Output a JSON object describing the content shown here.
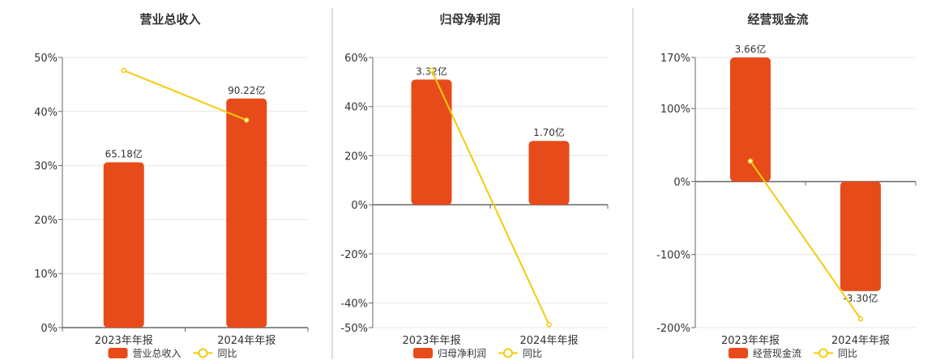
{
  "colors": {
    "bar": "#E84B1A",
    "line": "#F2CC0C",
    "grid": "#E6E6E6",
    "axis": "#666666",
    "divider": "#BBBBBB",
    "text": "#333333"
  },
  "chart_data": [
    {
      "type": "bar",
      "title": "营业总收入",
      "categories": [
        "2023年年报",
        "2024年年报"
      ],
      "ylim": [
        0,
        50
      ],
      "ticks": [
        0,
        10,
        20,
        30,
        40,
        50
      ],
      "tick_labels": [
        "0%",
        "10%",
        "20%",
        "30%",
        "40%",
        "50%"
      ],
      "series": [
        {
          "name": "营业总收入",
          "kind": "bar",
          "values": [
            30.6,
            42.4
          ],
          "labels": [
            "65.18亿",
            "90.22亿"
          ]
        },
        {
          "name": "同比",
          "kind": "line",
          "values": [
            47.6,
            38.4
          ]
        }
      ],
      "legend": "bottom-center"
    },
    {
      "type": "bar",
      "title": "归母净利润",
      "categories": [
        "2023年年报",
        "2024年年报"
      ],
      "ylim": [
        -50,
        60
      ],
      "ticks": [
        -50,
        -40,
        -20,
        0,
        20,
        40,
        60
      ],
      "tick_labels": [
        "-50%",
        "-40%",
        "-20%",
        "0%",
        "20%",
        "40%",
        "60%"
      ],
      "series": [
        {
          "name": "归母净利润",
          "kind": "bar",
          "values": [
            51,
            26
          ],
          "labels": [
            "3.32亿",
            "1.70亿"
          ]
        },
        {
          "name": "同比",
          "kind": "line",
          "values": [
            54.8,
            -48.8
          ]
        }
      ],
      "legend": "bottom-center"
    },
    {
      "type": "bar",
      "title": "经营现金流",
      "categories": [
        "2023年年报",
        "2024年年报"
      ],
      "ylim": [
        -200,
        170
      ],
      "ticks": [
        -200,
        -100,
        0,
        100,
        170
      ],
      "tick_labels": [
        "-200%",
        "-100%",
        "0%",
        "100%",
        "170%"
      ],
      "series": [
        {
          "name": "经营现金流",
          "kind": "bar",
          "values": [
            170,
            -150
          ],
          "labels": [
            "3.66亿",
            "-3.30亿"
          ]
        },
        {
          "name": "同比",
          "kind": "line",
          "values": [
            28,
            -188
          ]
        }
      ],
      "legend": "bottom-center"
    }
  ]
}
